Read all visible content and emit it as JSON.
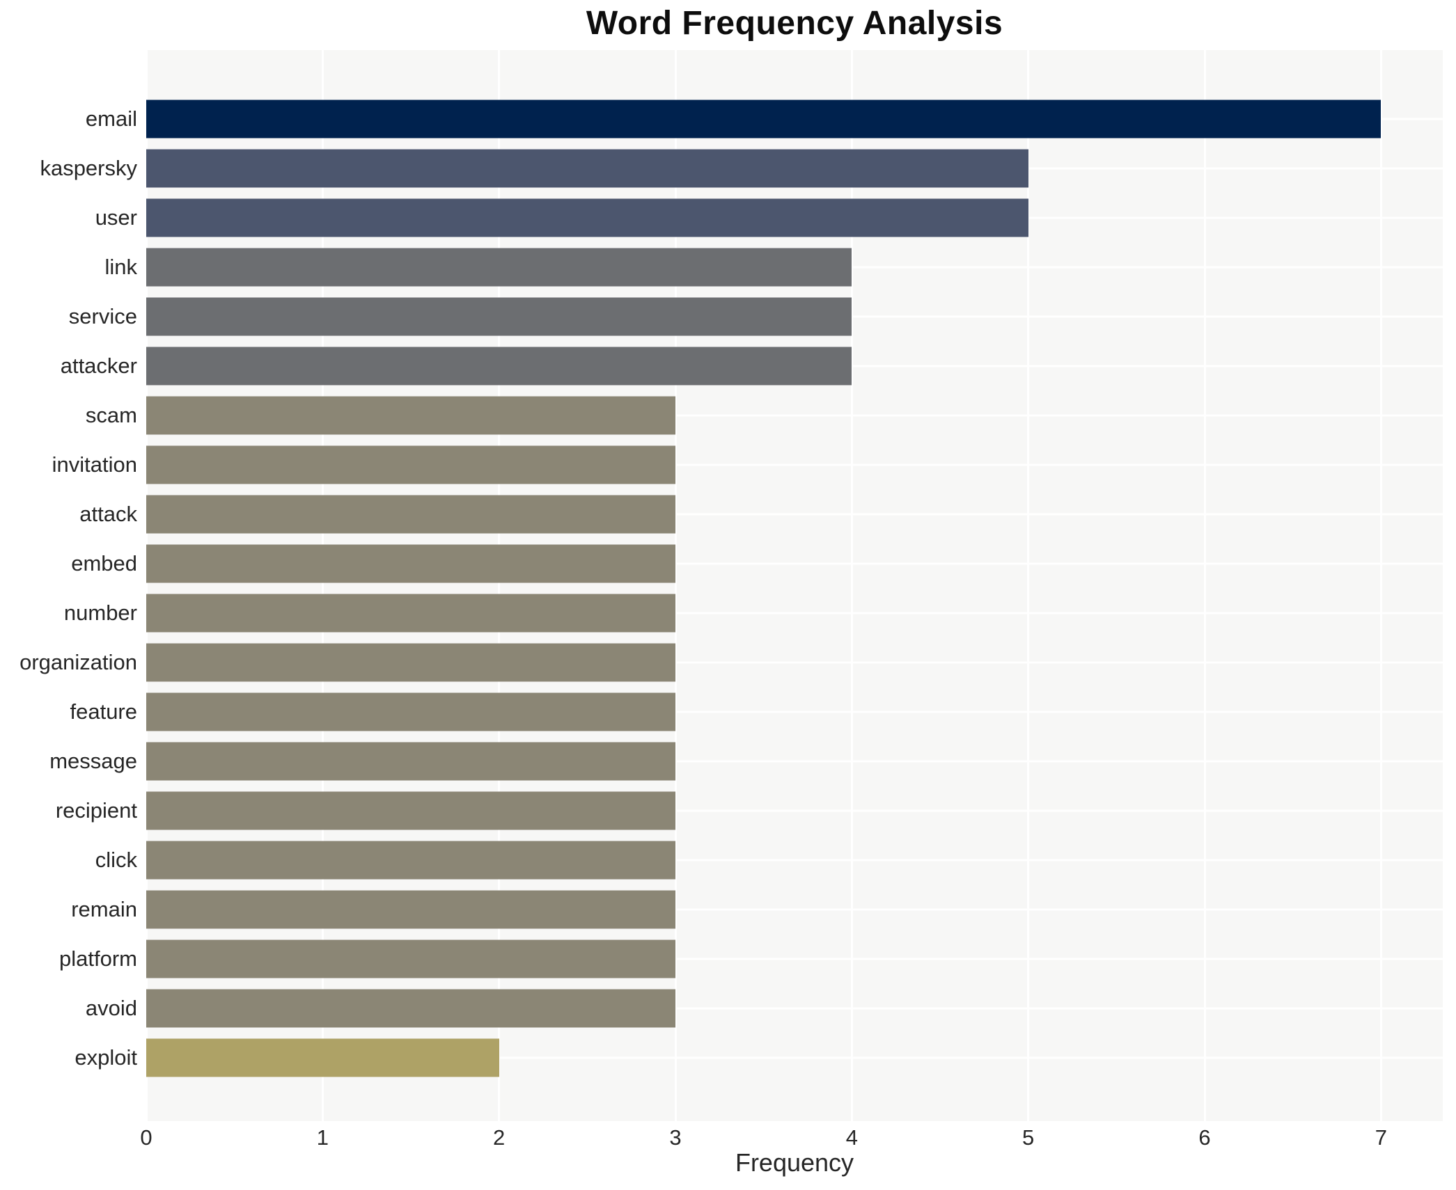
{
  "page": {
    "background": "#ffffff"
  },
  "chart_data": {
    "type": "bar",
    "orientation": "horizontal",
    "title": "Word Frequency Analysis",
    "xlabel": "Frequency",
    "ylabel": "",
    "xlim": [
      0,
      7.35
    ],
    "xticks": [
      0,
      1,
      2,
      3,
      4,
      5,
      6,
      7
    ],
    "grid": true,
    "legend": false,
    "plot_bg": "#f7f7f6",
    "grid_color": "#ffffff",
    "text_color": "#262626",
    "title_color": "#0d0d0d",
    "categories": [
      "email",
      "kaspersky",
      "user",
      "link",
      "service",
      "attacker",
      "scam",
      "invitation",
      "attack",
      "embed",
      "number",
      "organization",
      "feature",
      "message",
      "recipient",
      "click",
      "remain",
      "platform",
      "avoid",
      "exploit"
    ],
    "values": [
      7,
      5,
      5,
      4,
      4,
      4,
      3,
      3,
      3,
      3,
      3,
      3,
      3,
      3,
      3,
      3,
      3,
      3,
      3,
      2
    ],
    "bars": [
      {
        "label": "email",
        "value": 7,
        "color": "#00224e"
      },
      {
        "label": "kaspersky",
        "value": 5,
        "color": "#4c566e"
      },
      {
        "label": "user",
        "value": 5,
        "color": "#4c566e"
      },
      {
        "label": "link",
        "value": 4,
        "color": "#6c6e71"
      },
      {
        "label": "service",
        "value": 4,
        "color": "#6c6e71"
      },
      {
        "label": "attacker",
        "value": 4,
        "color": "#6c6e71"
      },
      {
        "label": "scam",
        "value": 3,
        "color": "#8b8675"
      },
      {
        "label": "invitation",
        "value": 3,
        "color": "#8b8675"
      },
      {
        "label": "attack",
        "value": 3,
        "color": "#8b8675"
      },
      {
        "label": "embed",
        "value": 3,
        "color": "#8b8675"
      },
      {
        "label": "number",
        "value": 3,
        "color": "#8b8675"
      },
      {
        "label": "organization",
        "value": 3,
        "color": "#8b8675"
      },
      {
        "label": "feature",
        "value": 3,
        "color": "#8b8675"
      },
      {
        "label": "message",
        "value": 3,
        "color": "#8b8675"
      },
      {
        "label": "recipient",
        "value": 3,
        "color": "#8b8675"
      },
      {
        "label": "click",
        "value": 3,
        "color": "#8b8675"
      },
      {
        "label": "remain",
        "value": 3,
        "color": "#8b8675"
      },
      {
        "label": "platform",
        "value": 3,
        "color": "#8b8675"
      },
      {
        "label": "avoid",
        "value": 3,
        "color": "#8b8675"
      },
      {
        "label": "exploit",
        "value": 2,
        "color": "#aea266"
      }
    ]
  }
}
